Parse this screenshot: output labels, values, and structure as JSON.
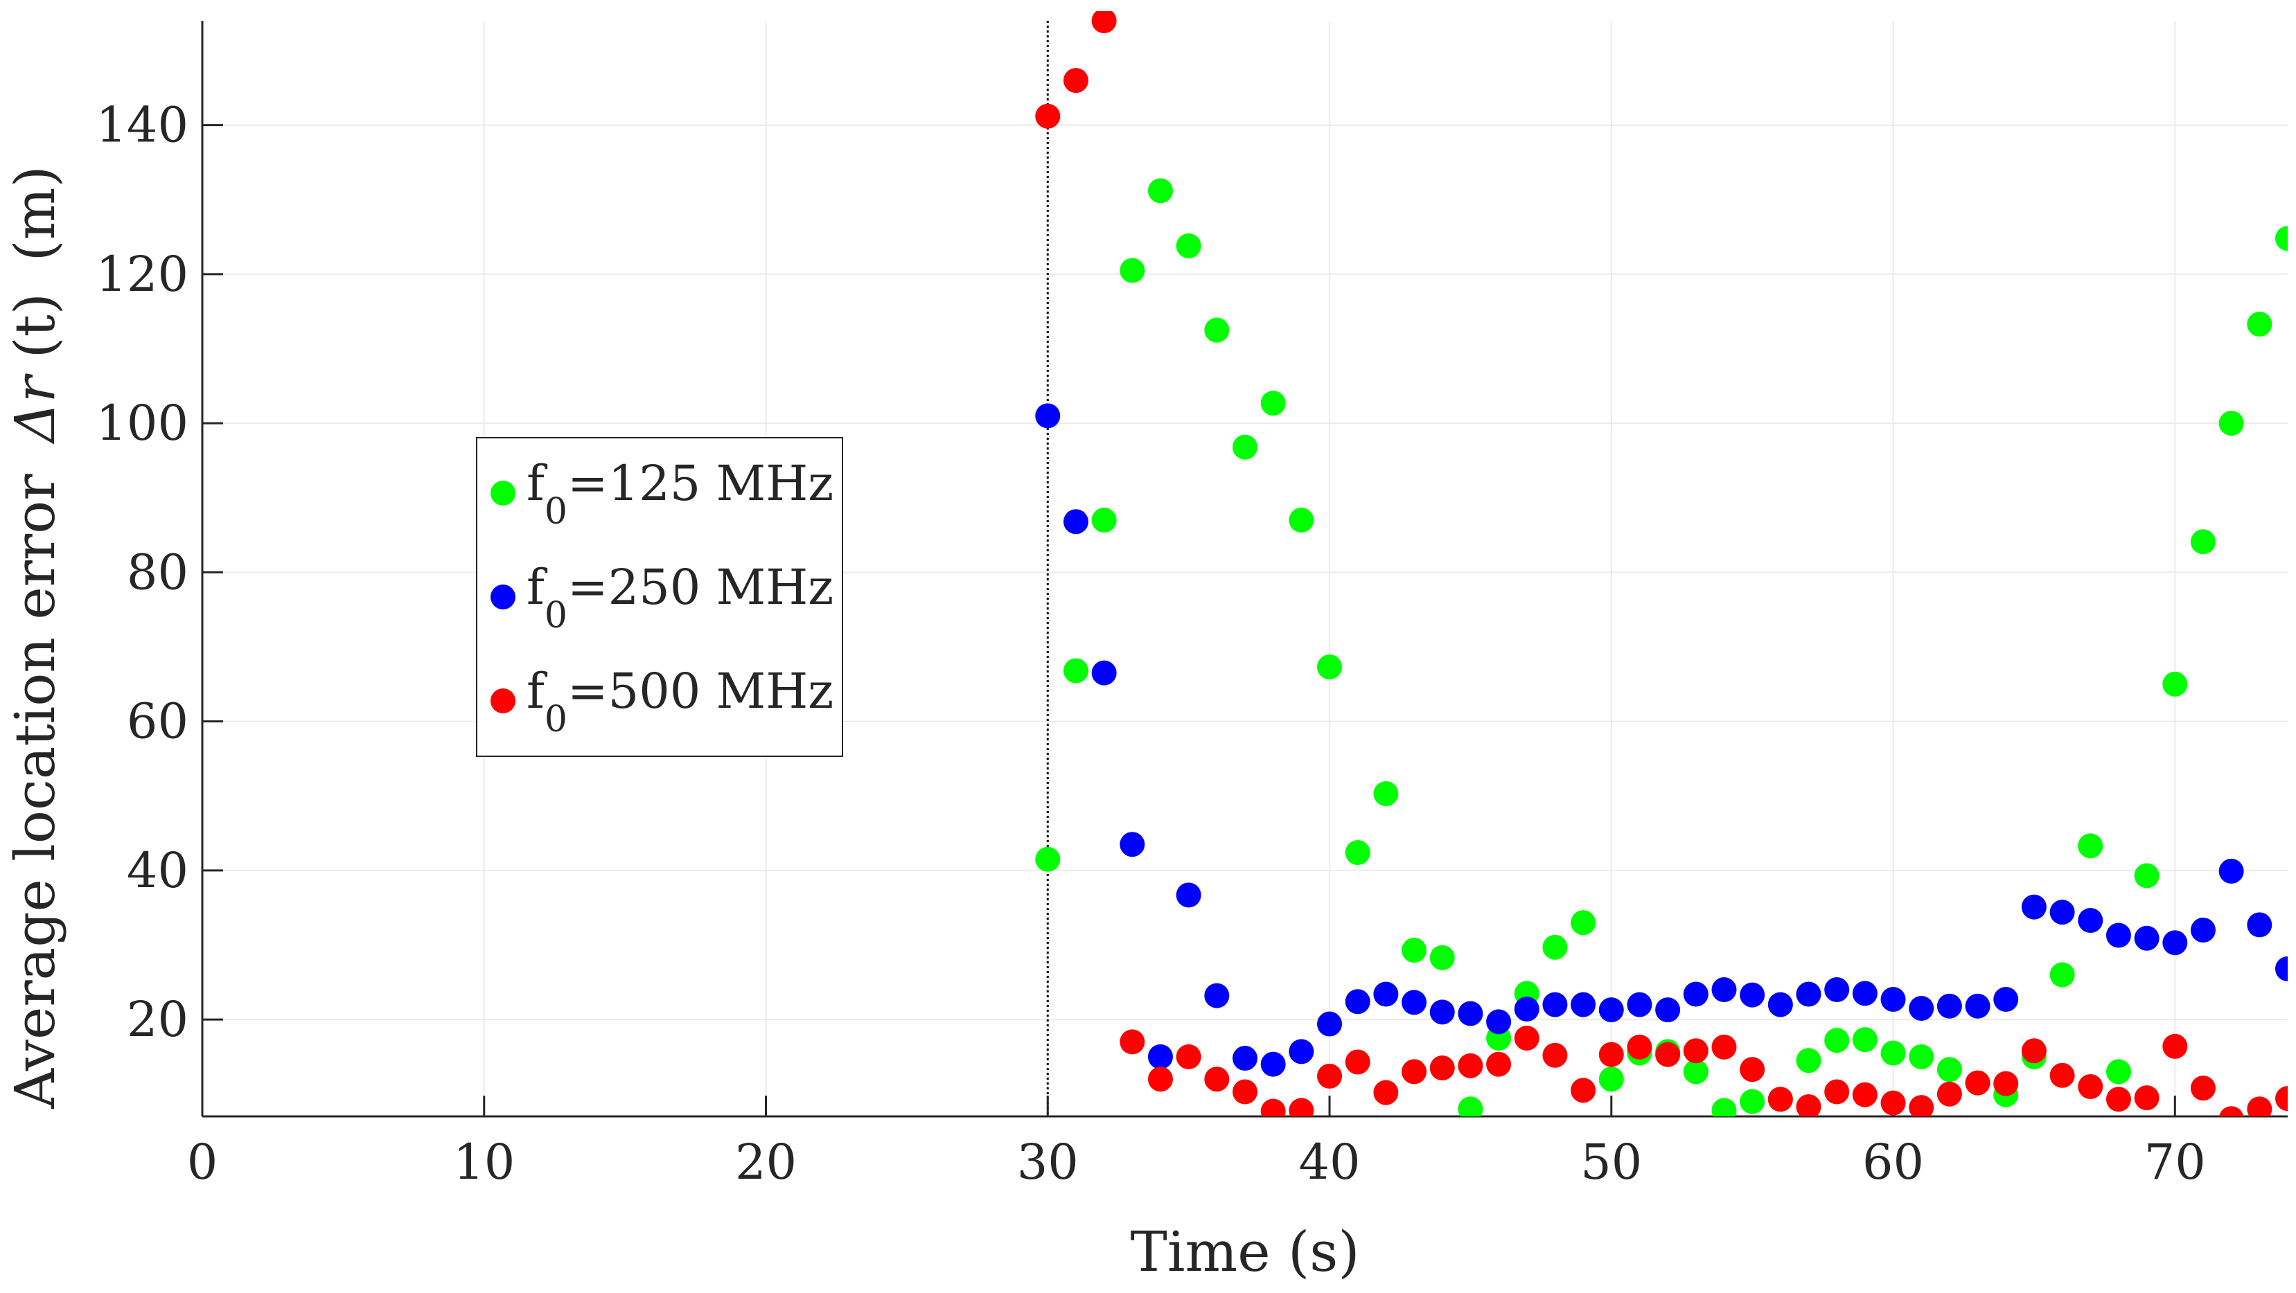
{
  "chart_data": {
    "type": "scatter",
    "title": "",
    "xlabel": "Time (s)",
    "ylabel": "Average location error",
    "ylabel_symbol": "Δr",
    "ylabel_arg": "(t)",
    "ylabel_unit": "(m)",
    "xlim": [
      0,
      74
    ],
    "ylim": [
      7,
      154
    ],
    "xticks": [
      0,
      10,
      20,
      30,
      40,
      50,
      60,
      70
    ],
    "yticks": [
      20,
      40,
      60,
      80,
      100,
      120,
      140
    ],
    "grid": true,
    "legend_position": "center-left",
    "vline_x": 30,
    "series": [
      {
        "name": "f0=125 MHz",
        "legend_prefix": "f",
        "legend_sub": "0",
        "legend_suffix": "=125 MHz",
        "color": "#00ff00",
        "x": [
          30,
          31,
          32,
          33,
          34,
          35,
          36,
          37,
          38,
          39,
          40,
          41,
          42,
          43,
          44,
          45,
          46,
          47,
          48,
          49,
          50,
          51,
          52,
          53,
          54,
          55,
          56,
          57,
          58,
          59,
          60,
          61,
          62,
          63,
          64,
          65,
          66,
          67,
          68,
          69,
          70,
          71,
          72,
          73,
          74
        ],
        "y": [
          41.5,
          66.8,
          87,
          120.5,
          131.2,
          123.8,
          112.5,
          96.8,
          102.7,
          87,
          67.3,
          42.4,
          50.3,
          29.3,
          28.3,
          8,
          17.5,
          23.5,
          29.7,
          33,
          12,
          15.5,
          15.7,
          13,
          7.8,
          9,
          9.3,
          14.5,
          17.2,
          17.3,
          15.5,
          15,
          13.3,
          11.5,
          9.9,
          15,
          26,
          43.3,
          13,
          39.3,
          65,
          84.1,
          100,
          113.3,
          124.8
        ]
      },
      {
        "name": "f0=250 MHz",
        "legend_prefix": "f",
        "legend_sub": "0",
        "legend_suffix": "=250 MHz",
        "color": "#0000ff",
        "x": [
          30,
          31,
          32,
          33,
          34,
          35,
          36,
          37,
          38,
          39,
          40,
          41,
          42,
          43,
          44,
          45,
          46,
          47,
          48,
          49,
          50,
          51,
          52,
          53,
          54,
          55,
          56,
          57,
          58,
          59,
          60,
          61,
          62,
          63,
          64,
          65,
          66,
          67,
          68,
          69,
          70,
          71,
          72,
          73,
          74
        ],
        "y": [
          101,
          86.8,
          66.5,
          43.5,
          15,
          36.7,
          23.2,
          14.8,
          14,
          15.7,
          19.4,
          22.4,
          23.4,
          22.3,
          21,
          20.8,
          19.7,
          21.4,
          22,
          22,
          21.3,
          22,
          21.3,
          23.4,
          24,
          23.3,
          22,
          23.4,
          24,
          23.5,
          22.7,
          21.5,
          21.8,
          21.8,
          22.7,
          35.1,
          34.4,
          33.3,
          31.3,
          30.9,
          30.3,
          32,
          39.9,
          32.7,
          26.8
        ]
      },
      {
        "name": "f0=500 MHz",
        "legend_prefix": "f",
        "legend_sub": "0",
        "legend_suffix": "=500 MHz",
        "color": "#ff0000",
        "x": [
          30,
          31,
          32,
          33,
          34,
          35,
          36,
          37,
          38,
          39,
          40,
          41,
          42,
          43,
          44,
          45,
          46,
          47,
          48,
          49,
          50,
          51,
          52,
          53,
          54,
          55,
          56,
          57,
          58,
          59,
          60,
          61,
          62,
          63,
          64,
          65,
          66,
          67,
          68,
          69,
          70,
          71,
          72,
          73,
          74
        ],
        "y": [
          141.2,
          146,
          154,
          17,
          12,
          15,
          12,
          10.3,
          7.7,
          7.8,
          12.4,
          14.3,
          10.2,
          13,
          13.5,
          13.8,
          14,
          17.5,
          15.2,
          10.5,
          15.3,
          16.3,
          15.3,
          15.8,
          16.3,
          13.3,
          9.3,
          8.3,
          10.3,
          9.9,
          8.8,
          8.2,
          10,
          11.5,
          11.4,
          15.8,
          12.5,
          11,
          9.3,
          9.5,
          16.4,
          10.8,
          6.7,
          8,
          9.4
        ]
      }
    ]
  }
}
